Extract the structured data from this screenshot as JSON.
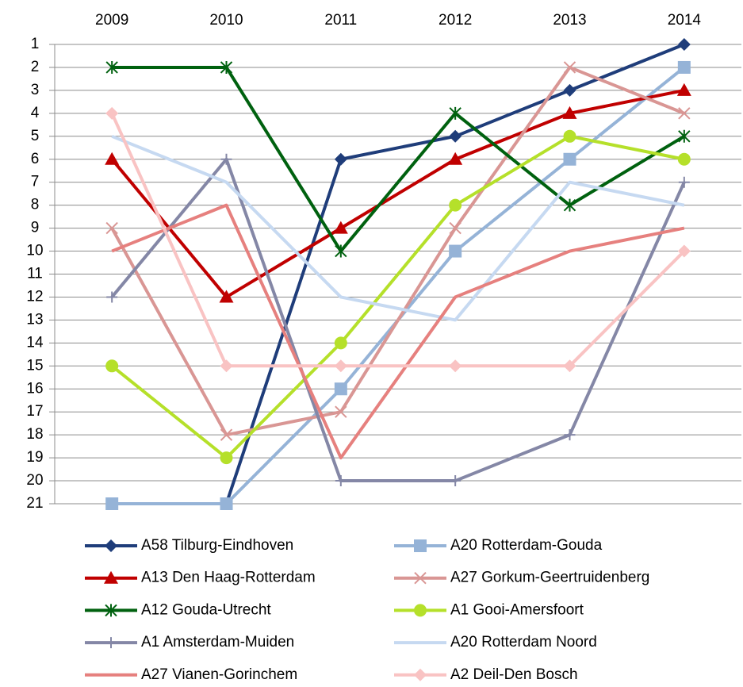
{
  "chart_data": {
    "type": "line",
    "categories": [
      "2009",
      "2010",
      "2011",
      "2012",
      "2013",
      "2014"
    ],
    "ylim": [
      1,
      21
    ],
    "yreverse": true,
    "yticks": [
      1,
      2,
      3,
      4,
      5,
      6,
      7,
      8,
      9,
      10,
      11,
      12,
      13,
      14,
      15,
      16,
      17,
      18,
      19,
      20,
      21
    ],
    "grid": true,
    "legend": "bottom",
    "series": [
      {
        "name": "A58 Tilburg-Eindhoven",
        "color": "#1f3d7a",
        "marker": "diamond",
        "values": [
          null,
          21,
          6,
          5,
          3,
          1
        ]
      },
      {
        "name": "A20 Rotterdam-Gouda",
        "color": "#95b3d7",
        "marker": "square",
        "values": [
          21,
          21,
          16,
          10,
          6,
          2
        ]
      },
      {
        "name": "A13 Den Haag-Rotterdam",
        "color": "#c00000",
        "marker": "triangle",
        "values": [
          6,
          12,
          9,
          6,
          4,
          3
        ]
      },
      {
        "name": "A27 Gorkum-Geertruidenberg",
        "color": "#d99694",
        "marker": "x",
        "values": [
          9,
          18,
          17,
          9,
          2,
          4
        ]
      },
      {
        "name": "A12 Gouda-Utrecht",
        "color": "#00610f",
        "marker": "star",
        "values": [
          2,
          2,
          10,
          4,
          8,
          5
        ]
      },
      {
        "name": "A1 Gooi-Amersfoort",
        "color": "#b5e02a",
        "marker": "circle",
        "values": [
          15,
          19,
          14,
          8,
          5,
          6
        ]
      },
      {
        "name": "A1 Amsterdam-Muiden",
        "color": "#8487a6",
        "marker": "plus",
        "values": [
          12,
          6,
          20,
          20,
          18,
          7
        ]
      },
      {
        "name": "A20 Rotterdam Noord",
        "color": "#c6d9f1",
        "marker": "none",
        "values": [
          5,
          7,
          12,
          13,
          7,
          8
        ]
      },
      {
        "name": "A27 Vianen-Gorinchem",
        "color": "#e6807e",
        "marker": "none",
        "values": [
          10,
          8,
          19,
          12,
          10,
          9
        ]
      },
      {
        "name": "A2 Deil-Den Bosch",
        "color": "#f9c3c3",
        "marker": "diamond",
        "values": [
          4,
          15,
          15,
          15,
          15,
          10
        ]
      }
    ]
  }
}
